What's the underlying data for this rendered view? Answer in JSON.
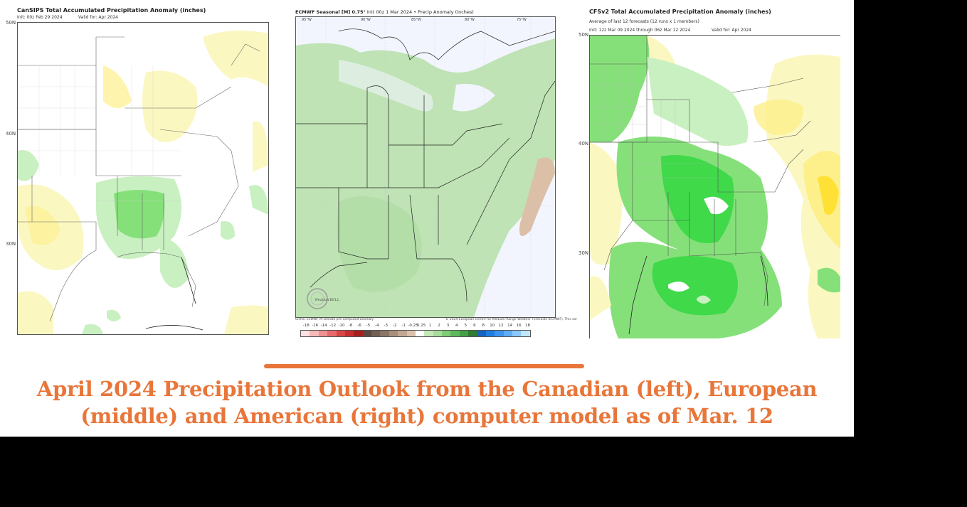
{
  "caption": {
    "line1": "April 2024 Precipitation Outlook from the Canadian (left), European",
    "line2": "(middle) and American (right) computer model as of Mar. 12",
    "color": "#e8763a"
  },
  "panels": {
    "left": {
      "title": "CanSIPS Total Accumulated Precipitation Anomaly (inches)",
      "init": "Init: 00z Feb 29 2024",
      "valid": "Valid for: Apr 2024",
      "lat_labels": [
        "50N",
        "40N",
        "30N"
      ]
    },
    "middle": {
      "title_bold": "ECMWF Seasonal [M] 0.75°",
      "title_rest": " Init 00z 1 Mar 2024 • Precip Anomaly (Inches)",
      "lon_labels": [
        "95°W",
        "90°W",
        "85°W",
        "80°W",
        "75°W"
      ],
      "logo_text": "WeatherBELL",
      "clima_note": "Clima: ECMWF M-climate pre-computed anomaly",
      "copyright": "© 2024 European Centre for Medium-Range Weather Forecasts (ECMWF). This ser",
      "legend": {
        "ticks": [
          "-18",
          "-16",
          "-14",
          "-12",
          "-10",
          "-8",
          "-6",
          "-5",
          "-4",
          "-3",
          "-2",
          "-1",
          "-0.25",
          "0.25",
          "1",
          "2",
          "3",
          "4",
          "5",
          "6",
          "8",
          "10",
          "12",
          "14",
          "16",
          "18"
        ],
        "colors": [
          "#fde0e0",
          "#f7b8b8",
          "#f09090",
          "#e86a6a",
          "#d94545",
          "#c62f2f",
          "#a81f1f",
          "#5c4a42",
          "#736055",
          "#8b7565",
          "#a88f7c",
          "#c2a893",
          "#dcc2ac",
          "#ffffff",
          "#c5e8b7",
          "#a8dc9a",
          "#7fcc74",
          "#5cb85c",
          "#45a045",
          "#2e7d32",
          "#1565c0",
          "#1e7fe0",
          "#3d95f0",
          "#5fadf5",
          "#8cc8fa",
          "#bfe8fc"
        ]
      }
    },
    "right": {
      "title": "CFSv2 Total Accumulated Precipitation Anomaly (inches)",
      "subtitle": "Average of last 12 forecasts (12 runs x 1 members)",
      "init": "Init: 12z Mar 09 2024 through 06z Mar 12 2024",
      "valid": "Valid for: Apr 2024",
      "lat_labels": [
        "50N",
        "40N",
        "30N"
      ]
    }
  },
  "colors": {
    "wet_light": "#c8f0c0",
    "wet_mid": "#86e07a",
    "wet_strong": "#3fd94a",
    "dry_light": "#fbf7c0",
    "dry_mid": "#fdef8a",
    "dry_strong": "#ffe135",
    "ecmwf_green": "#bfe3b4",
    "ecmwf_ocean": "#f2f5fd",
    "ecmwf_brown": "#dcbfa7"
  }
}
